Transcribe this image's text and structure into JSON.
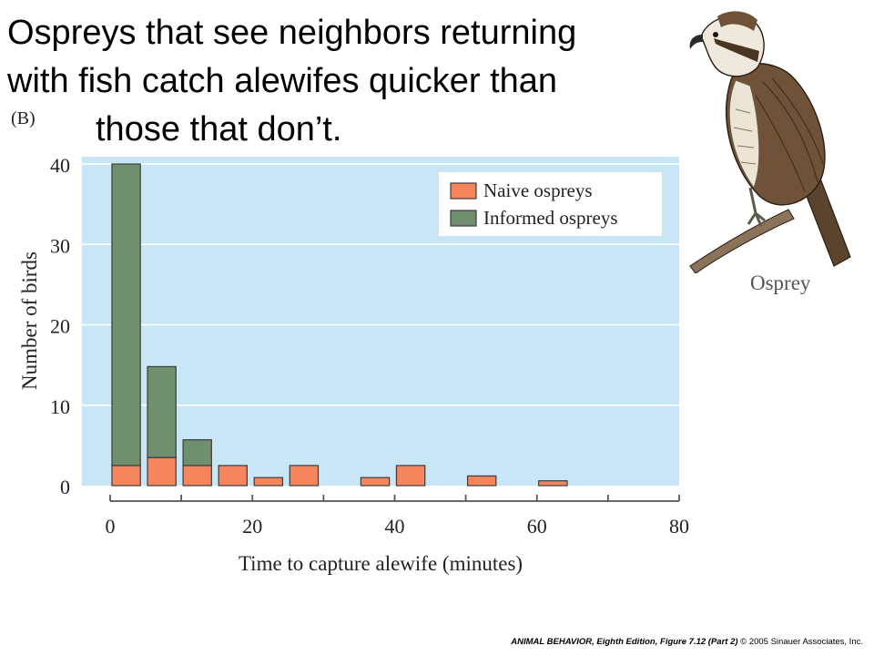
{
  "slide": {
    "title_lines": [
      "Ospreys that see neighbors returning",
      "with fish catch alewifes quicker than",
      "those that don’t."
    ],
    "panel_label": "(B)",
    "image_label": "Osprey",
    "credit_bold": "ANIMAL BEHAVIOR, Eighth Edition, Figure 7.12 (Part 2)",
    "credit_rest": " © 2005 Sinauer Associates, Inc."
  },
  "colors": {
    "plot_bg": "#c9e6f7",
    "naive": "#f4855c",
    "informed": "#6f8f6f"
  },
  "chart_data": {
    "type": "bar",
    "stacked": true,
    "xlabel": "Time to capture alewife (minutes)",
    "ylabel": "Number of birds",
    "xlim": [
      0,
      80
    ],
    "ylim": [
      0,
      40
    ],
    "xticks": [
      0,
      20,
      40,
      60,
      80
    ],
    "yticks": [
      0,
      10,
      20,
      30,
      40
    ],
    "bin_width": 5,
    "bin_starts": [
      0,
      5,
      10,
      15,
      20,
      25,
      30,
      35,
      40,
      45,
      50,
      55,
      60,
      65,
      70,
      75
    ],
    "series": [
      {
        "name": "Naive ospreys",
        "color": "#f4855c",
        "values": [
          2.5,
          3.5,
          2.5,
          2.5,
          1,
          2.5,
          0,
          1,
          2.5,
          0,
          1.2,
          0,
          0.6,
          0,
          0,
          0
        ]
      },
      {
        "name": "Informed ospreys",
        "color": "#6f8f6f",
        "values": [
          37.5,
          11.3,
          3.2,
          0,
          0,
          0,
          0,
          0,
          0,
          0,
          0,
          0,
          0,
          0,
          0,
          0
        ]
      }
    ],
    "legend_position": "top-right",
    "grid": "horizontal"
  }
}
